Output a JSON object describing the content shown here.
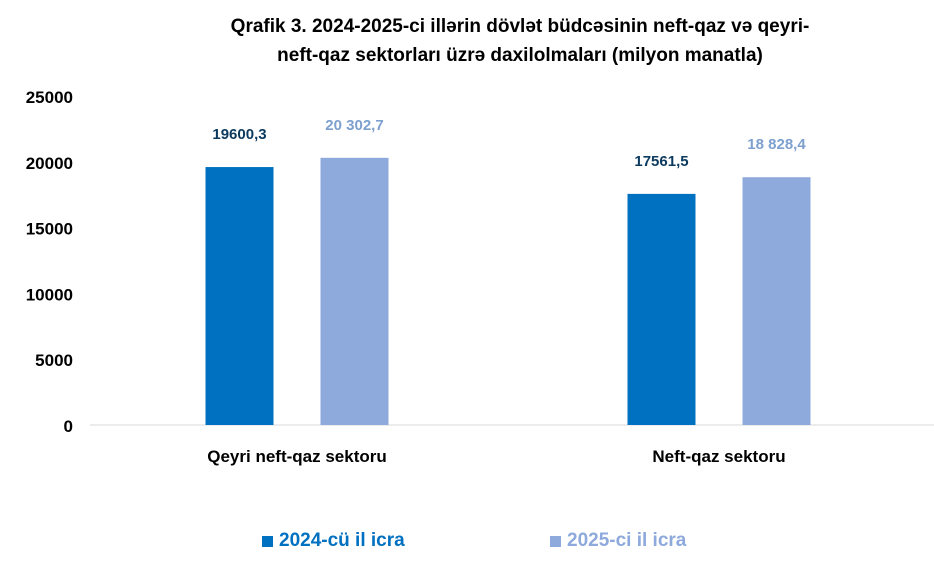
{
  "title_line1": "Qrafik 3. 2024-2025-ci  illərin dövlət büdcəsinin  neft-qaz və qeyri-",
  "title_line2": "neft-qaz  sektorları üzrə daxilolmaları (milyon manatla)",
  "colors": {
    "series1": "#0070C0",
    "series2": "#8EA9DB",
    "label1": "#0B3A5E",
    "label2": "#7DA0CF"
  },
  "chart_data": {
    "type": "bar",
    "title": "Qrafik 3. 2024-2025-ci  illərin dövlət büdcəsinin  neft-qaz və qeyri-neft-qaz  sektorları üzrə daxilolmaları (milyon manatla)",
    "categories": [
      "Qeyri neft-qaz sektoru",
      "Neft-qaz sektoru"
    ],
    "series": [
      {
        "name": "2024-cü il icra",
        "values": [
          19600.3,
          17561.5
        ],
        "labels": [
          "19600,3",
          "17561,5"
        ]
      },
      {
        "name": "2025-ci il icra",
        "values": [
          20302.7,
          18828.4
        ],
        "labels": [
          "20 302,7",
          "18 828,4"
        ]
      }
    ],
    "yticks": [
      "0",
      "5000",
      "10000",
      "15000",
      "20000",
      "25000"
    ],
    "ylim": [
      0,
      25000
    ],
    "grid": false,
    "legend": "bottom"
  }
}
